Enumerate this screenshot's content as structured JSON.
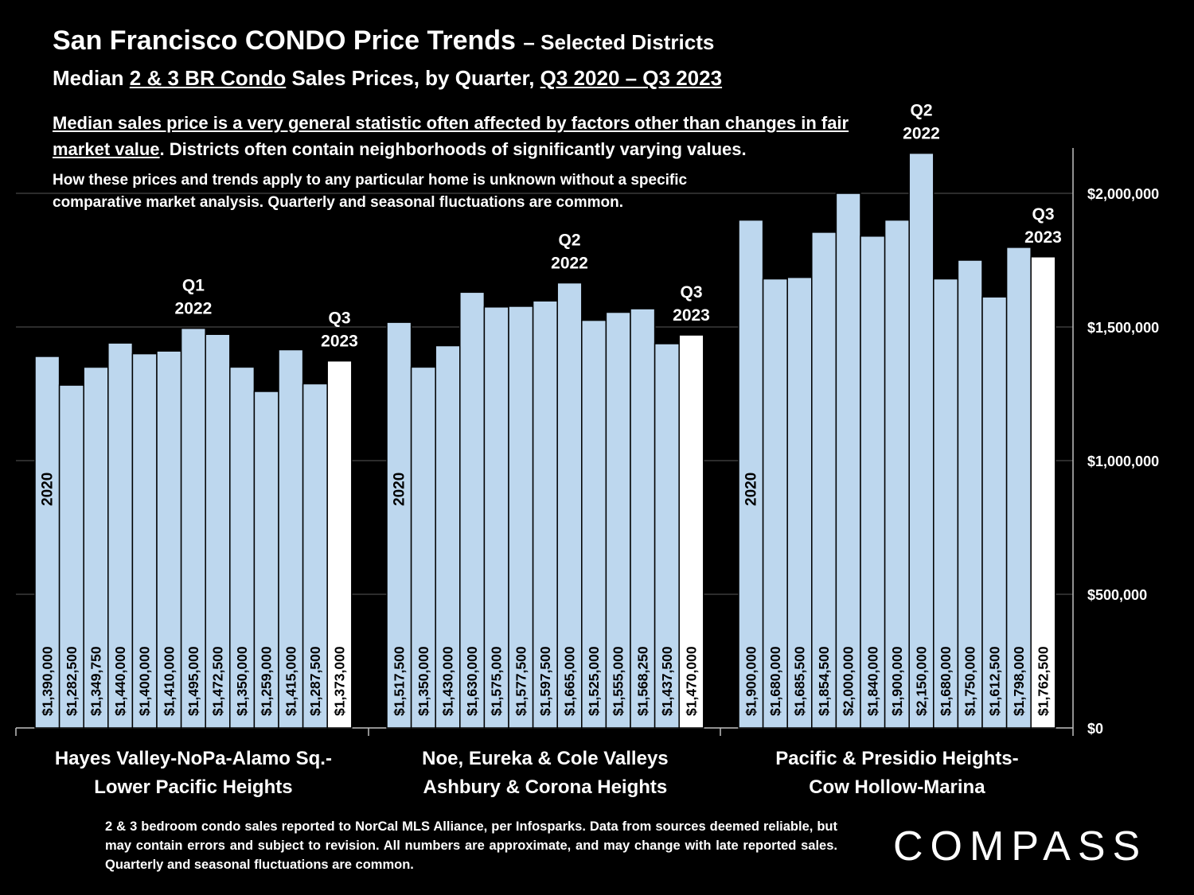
{
  "title": {
    "main": "San Francisco CONDO Price Trends",
    "suffix": "– Selected Districts",
    "subtitle_pre": "Median ",
    "subtitle_link1": "2 & 3 BR Condo",
    "subtitle_mid": " Sales Prices, by Quarter, ",
    "subtitle_link2": "Q3 2020 – Q3 2023"
  },
  "notes": {
    "note1_underlined": "Median sales price is a very general statistic often affected by factors other than changes in fair market value",
    "note1_rest": ". Districts often contain neighborhoods of significantly varying values.",
    "note2": "How these prices and trends apply to any particular home is unknown without a specific comparative market analysis. Quarterly and seasonal fluctuations are common."
  },
  "footer": "2 & 3 bedroom condo sales reported to NorCal MLS Alliance, per Infosparks. Data from sources deemed reliable, but may contain errors and subject to revision. All numbers are approximate, and may change with late reported sales. Quarterly and seasonal fluctuations are common.",
  "logo": "COMPASS",
  "colors": {
    "bar": "#bdd7ee",
    "latest_bar": "#ffffff",
    "background": "#000000",
    "grid": "#595959"
  },
  "chart_data": {
    "type": "bar",
    "ylim": [
      0,
      2150000
    ],
    "yticks": [
      0,
      500000,
      1000000,
      1500000,
      2000000
    ],
    "ytick_labels": [
      "$0",
      "$500,000",
      "$1,000,000",
      "$1,500,000",
      "$2,000,000"
    ],
    "grid": true,
    "groups": [
      {
        "name_line1": "Hayes Valley-NoPa-Alamo Sq.-",
        "name_line2": "Lower Pacific Heights",
        "values": [
          1390000,
          1282500,
          1349750,
          1440000,
          1400000,
          1410000,
          1495000,
          1472500,
          1350000,
          1259000,
          1415000,
          1287500,
          1373000
        ],
        "labels": [
          "$1,390,000",
          "$1,282,500",
          "$1,349,750",
          "$1,440,000",
          "$1,400,000",
          "$1,410,000",
          "$1,495,000",
          "$1,472,500",
          "$1,350,000",
          "$1,259,000",
          "$1,415,000",
          "$1,287,500",
          "$1,373,000"
        ],
        "annotations": [
          {
            "index": 0,
            "text": "2020",
            "rotated": true
          },
          {
            "index": 6,
            "line1": "Q1",
            "line2": "2022"
          },
          {
            "index": 12,
            "line1": "Q3",
            "line2": "2023"
          }
        ]
      },
      {
        "name_line1": "Noe, Eureka & Cole Valleys",
        "name_line2": "Ashbury & Corona Heights",
        "values": [
          1517500,
          1350000,
          1430000,
          1630000,
          1575000,
          1577500,
          1597500,
          1665000,
          1525000,
          1555000,
          1568250,
          1437500,
          1470000
        ],
        "labels": [
          "$1,517,500",
          "$1,350,000",
          "$1,430,000",
          "$1,630,000",
          "$1,575,000",
          "$1,577,500",
          "$1,597,500",
          "$1,665,000",
          "$1,525,000",
          "$1,555,000",
          "$1,568,250",
          "$1,437,500",
          "$1,470,000"
        ],
        "annotations": [
          {
            "index": 0,
            "text": "2020",
            "rotated": true
          },
          {
            "index": 7,
            "line1": "Q2",
            "line2": "2022"
          },
          {
            "index": 12,
            "line1": "Q3",
            "line2": "2023"
          }
        ]
      },
      {
        "name_line1": "Pacific & Presidio Heights-",
        "name_line2": "Cow Hollow-Marina",
        "values": [
          1900000,
          1680000,
          1685500,
          1854500,
          2000000,
          1840000,
          1900000,
          2150000,
          1680000,
          1750000,
          1612500,
          1798000,
          1762500
        ],
        "labels": [
          "$1,900,000",
          "$1,680,000",
          "$1,685,500",
          "$1,854,500",
          "$2,000,000",
          "$1,840,000",
          "$1,900,000",
          "$2,150,000",
          "$1,680,000",
          "$1,750,000",
          "$1,612,500",
          "$1,798,000",
          "$1,762,500"
        ],
        "annotations": [
          {
            "index": 0,
            "text": "2020",
            "rotated": true
          },
          {
            "index": 7,
            "line1": "Q2",
            "line2": "2022"
          },
          {
            "index": 12,
            "line1": "Q3",
            "line2": "2023"
          }
        ]
      }
    ]
  }
}
